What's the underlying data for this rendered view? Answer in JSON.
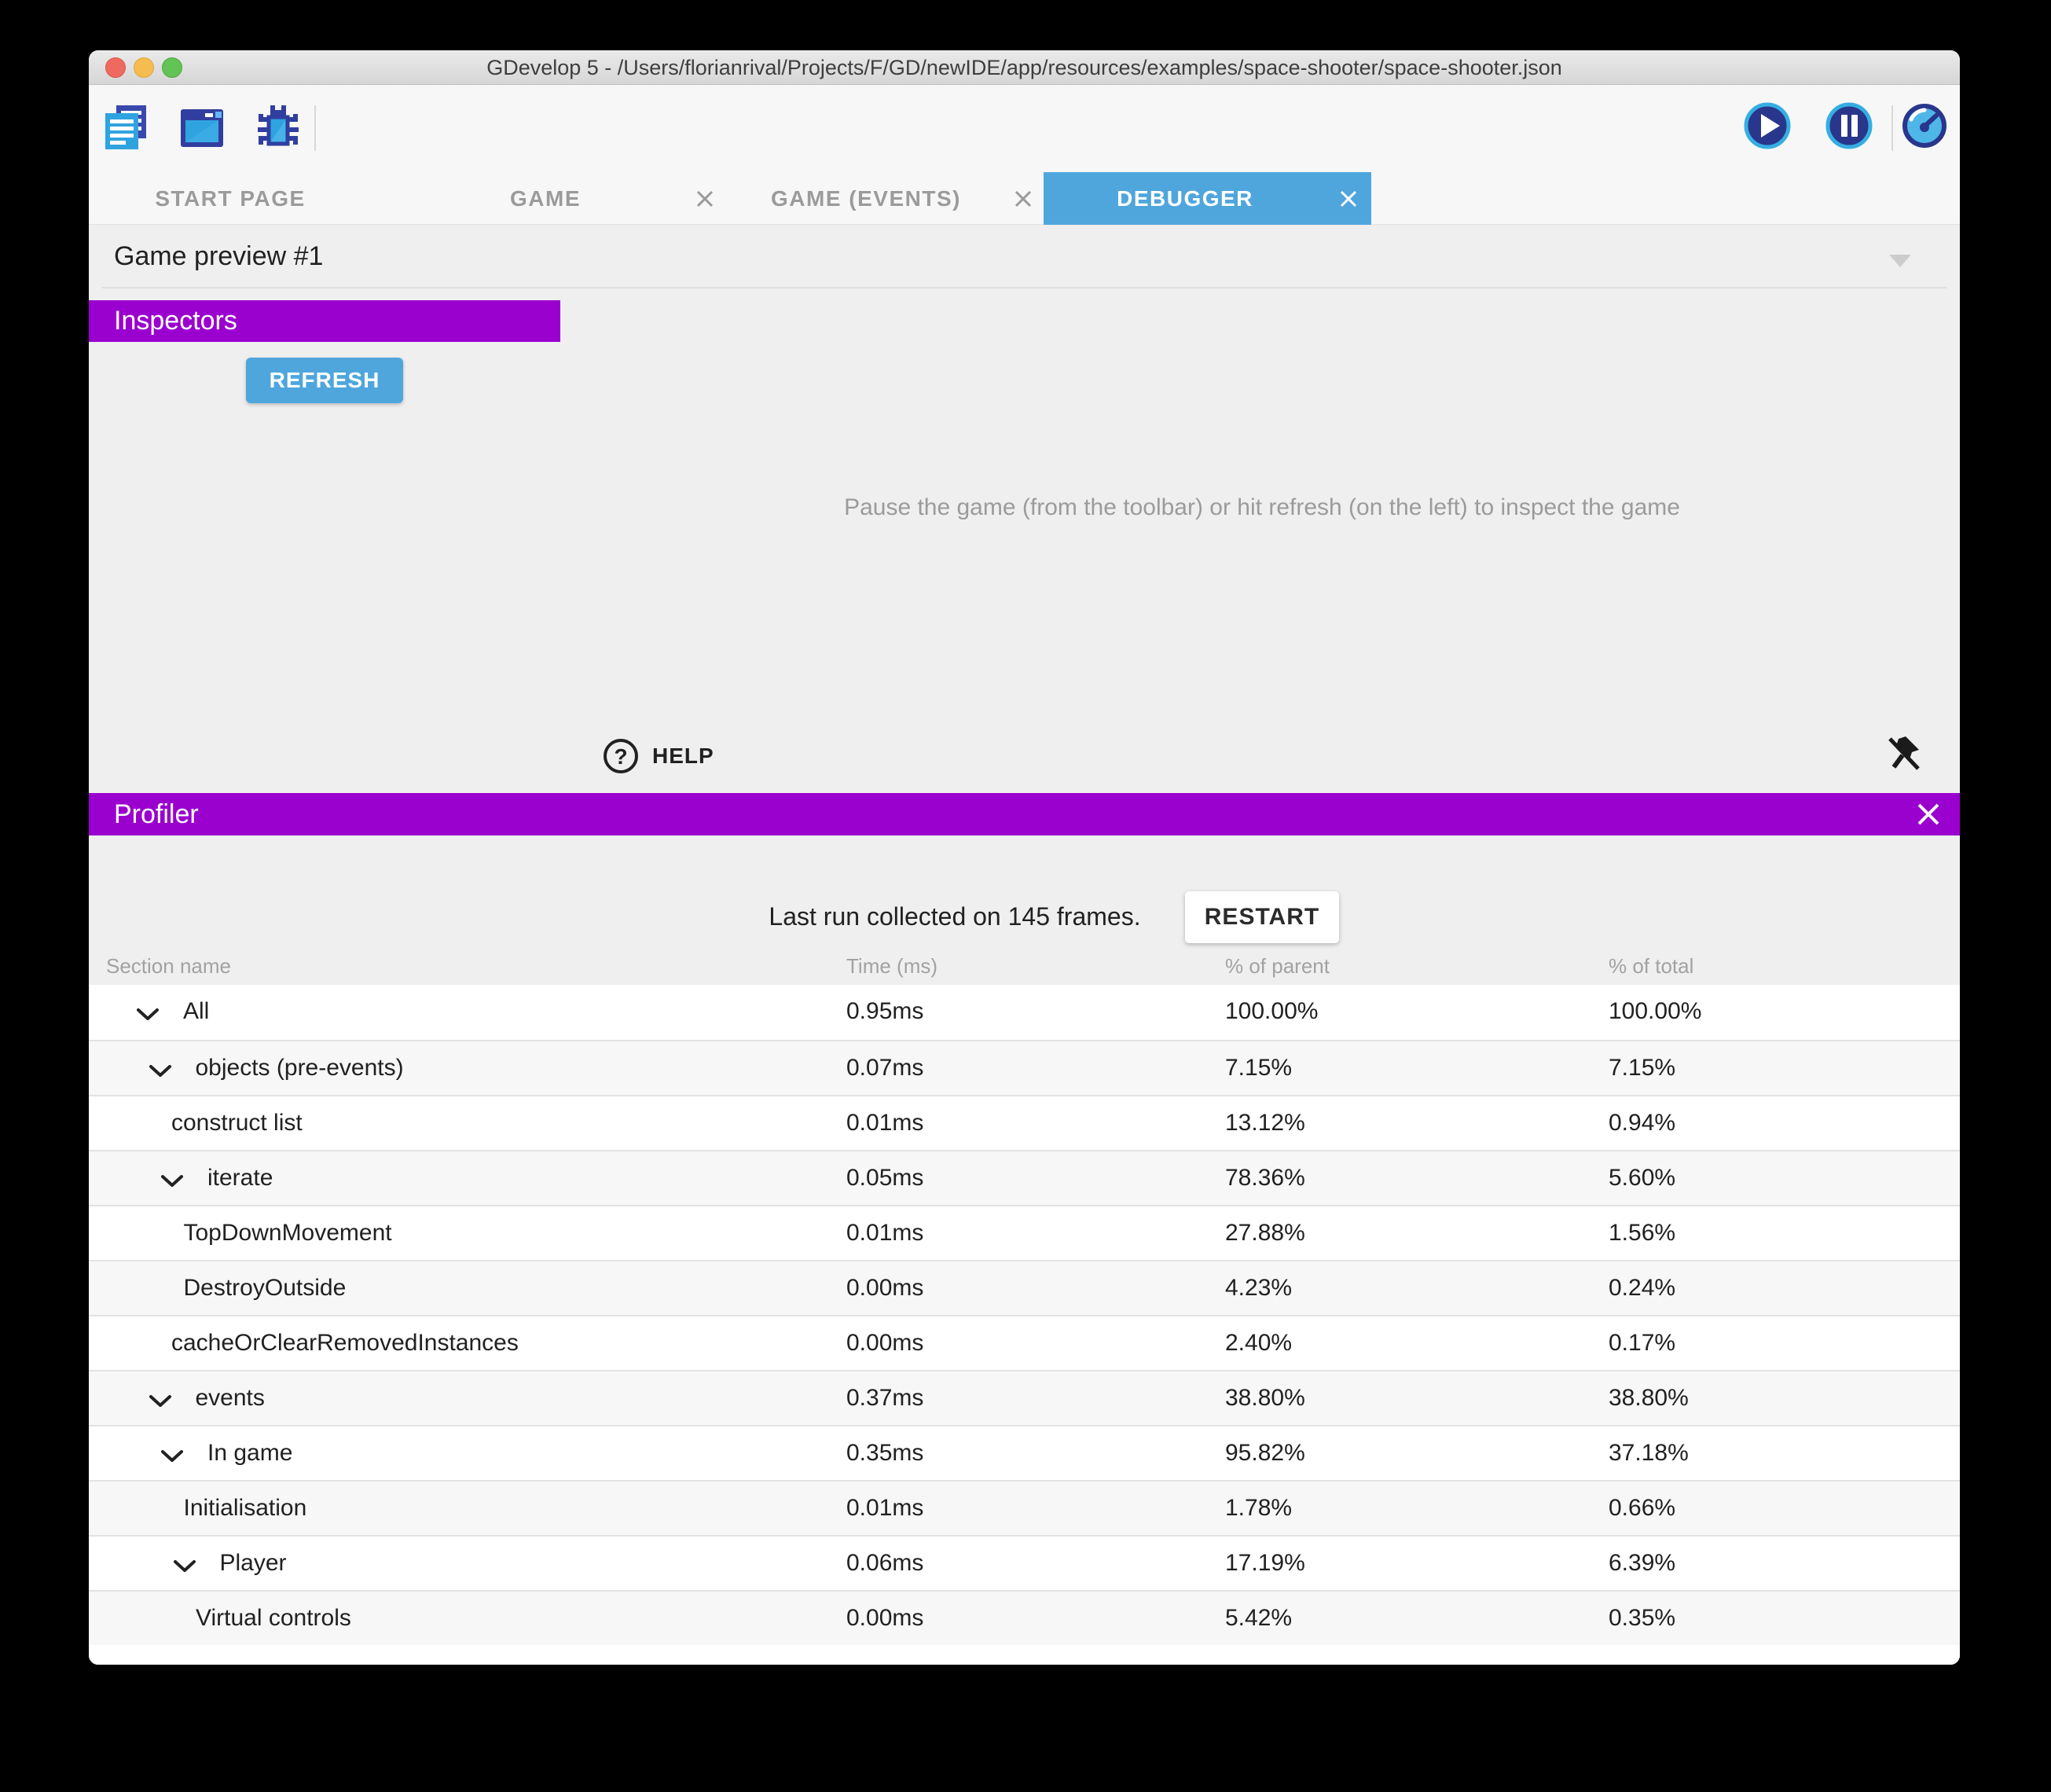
{
  "window": {
    "title": "GDevelop 5 - /Users/florianrival/Projects/F/GD/newIDE/app/resources/examples/space-shooter/space-shooter.json"
  },
  "toolbar": {
    "icons": [
      "project-manager-icon",
      "start-page-icon",
      "debug-icon",
      "play-icon",
      "pause-icon",
      "profiler-gauge-icon"
    ]
  },
  "tabs": [
    {
      "label": "START PAGE",
      "closable": false,
      "active": false
    },
    {
      "label": "GAME",
      "closable": true,
      "active": false
    },
    {
      "label": "GAME (EVENTS)",
      "closable": true,
      "active": false
    },
    {
      "label": "DEBUGGER",
      "closable": true,
      "active": true
    }
  ],
  "debugger": {
    "preview_label": "Game preview #1",
    "inspectors_header": "Inspectors",
    "refresh_button": "REFRESH",
    "empty_message": "Pause the game (from the toolbar) or hit refresh (on the left) to inspect the game",
    "help_button": "HELP",
    "help_icon_glyph": "?"
  },
  "profiler": {
    "header": "Profiler",
    "status_text": "Last run collected on 145 frames.",
    "restart_button": "RESTART",
    "table": {
      "columns": [
        "Section name",
        "Time (ms)",
        "% of parent",
        "% of total"
      ],
      "rows": [
        {
          "name": "All",
          "level": 0,
          "expandable": true,
          "time": "0.95ms",
          "parent": "100.00%",
          "total": "100.00%"
        },
        {
          "name": "objects (pre-events)",
          "level": 1,
          "expandable": true,
          "time": "0.07ms",
          "parent": "7.15%",
          "total": "7.15%"
        },
        {
          "name": "construct list",
          "level": 2,
          "expandable": false,
          "time": "0.01ms",
          "parent": "13.12%",
          "total": "0.94%"
        },
        {
          "name": "iterate",
          "level": 2,
          "expandable": true,
          "time": "0.05ms",
          "parent": "78.36%",
          "total": "5.60%"
        },
        {
          "name": "TopDownMovement",
          "level": 3,
          "expandable": false,
          "time": "0.01ms",
          "parent": "27.88%",
          "total": "1.56%"
        },
        {
          "name": "DestroyOutside",
          "level": 3,
          "expandable": false,
          "time": "0.00ms",
          "parent": "4.23%",
          "total": "0.24%"
        },
        {
          "name": "cacheOrClearRemovedInstances",
          "level": 2,
          "expandable": false,
          "time": "0.00ms",
          "parent": "2.40%",
          "total": "0.17%"
        },
        {
          "name": "events",
          "level": 1,
          "expandable": true,
          "time": "0.37ms",
          "parent": "38.80%",
          "total": "38.80%"
        },
        {
          "name": "In game",
          "level": 2,
          "expandable": true,
          "time": "0.35ms",
          "parent": "95.82%",
          "total": "37.18%"
        },
        {
          "name": "Initialisation",
          "level": 3,
          "expandable": false,
          "time": "0.01ms",
          "parent": "1.78%",
          "total": "0.66%"
        },
        {
          "name": "Player",
          "level": 3,
          "expandable": true,
          "time": "0.06ms",
          "parent": "17.19%",
          "total": "6.39%"
        },
        {
          "name": "Virtual controls",
          "level": 4,
          "expandable": false,
          "time": "0.00ms",
          "parent": "5.42%",
          "total": "0.35%"
        }
      ]
    }
  },
  "colors": {
    "accent_purple": "#9A00CE",
    "accent_blue": "#4FA6DD"
  }
}
